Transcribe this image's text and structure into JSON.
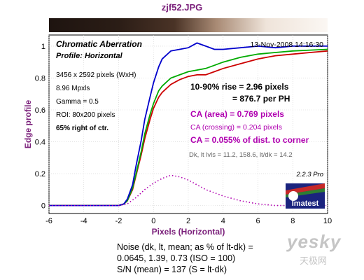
{
  "title": "zjf52.JPG",
  "panel": {
    "heading": "Chromatic Aberration",
    "subheading": "Profile: Horizontal",
    "date": "13-Nov-2008 14:16:30",
    "info_lines": [
      "3456 x 2592 pixels (WxH)",
      "8.96 Mpxls",
      "Gamma = 0.5",
      "ROI: 80x200 pixels",
      "65% right of ctr."
    ],
    "rise_line1": "10-90% rise = 2.96 pixels",
    "rise_line2": "= 876.7 per PH",
    "ca_area": "CA (area) = 0.769 pixels",
    "ca_crossing": "CA (crossing) = 0.204 pixels",
    "ca_percent": "CA = 0.055% of dist. to corner",
    "levels": "Dk, lt lvls = 11.2, 158.6,  lt/dk = 14.2",
    "version": "2.2.3  Pro",
    "logo_text": "Imatest"
  },
  "footer": {
    "line1": "Noise (dk, lt, mean; as % of lt-dk) =",
    "line2": "0.0645,  1.39,  0.73  (ISO =  100)",
    "line3": "S/N (mean) = 137  (S = lt-dk)"
  },
  "watermark": {
    "main": "yesky",
    "sub": "天极网"
  },
  "colors": {
    "title": "#7a1f7a",
    "magenta": "#b000b0",
    "red": "#cc0000",
    "green": "#00aa00",
    "blue": "#0000cc",
    "pink": "#ff40ff"
  },
  "chart_data": {
    "type": "line",
    "xlabel": "Pixels (Horizontal)",
    "ylabel": "Edge profile",
    "xlim": [
      -6,
      10
    ],
    "ylim": [
      -0.05,
      1.07
    ],
    "xticks": [
      -6,
      -4,
      -2,
      0,
      2,
      4,
      6,
      8,
      10
    ],
    "yticks": [
      0,
      0.2,
      0.4,
      0.6,
      0.8,
      1
    ],
    "grid": true,
    "series": [
      {
        "color": "red",
        "x": [
          -6,
          -3,
          -2,
          -1.7,
          -1.5,
          -1.2,
          -1,
          -0.7,
          -0.5,
          -0.2,
          0,
          0.3,
          0.5,
          1,
          1.5,
          2,
          2.5,
          3,
          3.5,
          4,
          5,
          6,
          7,
          8,
          9,
          10
        ],
        "y": [
          0,
          0,
          0,
          0.01,
          0.03,
          0.1,
          0.19,
          0.32,
          0.42,
          0.54,
          0.61,
          0.68,
          0.71,
          0.76,
          0.79,
          0.81,
          0.82,
          0.82,
          0.84,
          0.86,
          0.89,
          0.92,
          0.94,
          0.95,
          0.96,
          0.97
        ]
      },
      {
        "color": "green",
        "x": [
          -6,
          -3,
          -2,
          -1.7,
          -1.5,
          -1.2,
          -1,
          -0.7,
          -0.5,
          -0.2,
          0,
          0.3,
          0.5,
          1,
          1.5,
          2,
          2.5,
          3,
          3.5,
          4,
          5,
          6,
          7,
          8,
          9,
          10
        ],
        "y": [
          0,
          0,
          0,
          0.01,
          0.03,
          0.11,
          0.2,
          0.34,
          0.45,
          0.57,
          0.64,
          0.72,
          0.75,
          0.8,
          0.82,
          0.84,
          0.85,
          0.86,
          0.88,
          0.9,
          0.93,
          0.95,
          0.96,
          0.97,
          0.975,
          0.98
        ]
      },
      {
        "color": "blue",
        "x": [
          -6,
          -3,
          -2,
          -1.7,
          -1.5,
          -1.2,
          -1,
          -0.7,
          -0.5,
          -0.2,
          0,
          0.3,
          0.5,
          1,
          1.5,
          2,
          2.5,
          3,
          3.5,
          4,
          5,
          6,
          7,
          8,
          9,
          10
        ],
        "y": [
          0,
          0,
          0,
          0.01,
          0.04,
          0.13,
          0.25,
          0.41,
          0.54,
          0.68,
          0.77,
          0.87,
          0.92,
          0.97,
          0.98,
          0.99,
          1.02,
          1.0,
          0.98,
          0.98,
          0.99,
          1.0,
          0.99,
          1.0,
          1.0,
          1.0
        ]
      },
      {
        "color": "magenta",
        "style": "dotted",
        "x": [
          -6,
          -2,
          -1.5,
          -1,
          -0.5,
          0,
          0.5,
          1,
          1.5,
          2,
          2.5,
          3,
          4,
          5,
          6,
          7,
          8,
          9,
          10
        ],
        "y": [
          0,
          0,
          0.01,
          0.05,
          0.1,
          0.14,
          0.17,
          0.19,
          0.18,
          0.16,
          0.13,
          0.1,
          0.06,
          0.03,
          0.01,
          0,
          0,
          0,
          0
        ]
      }
    ]
  }
}
